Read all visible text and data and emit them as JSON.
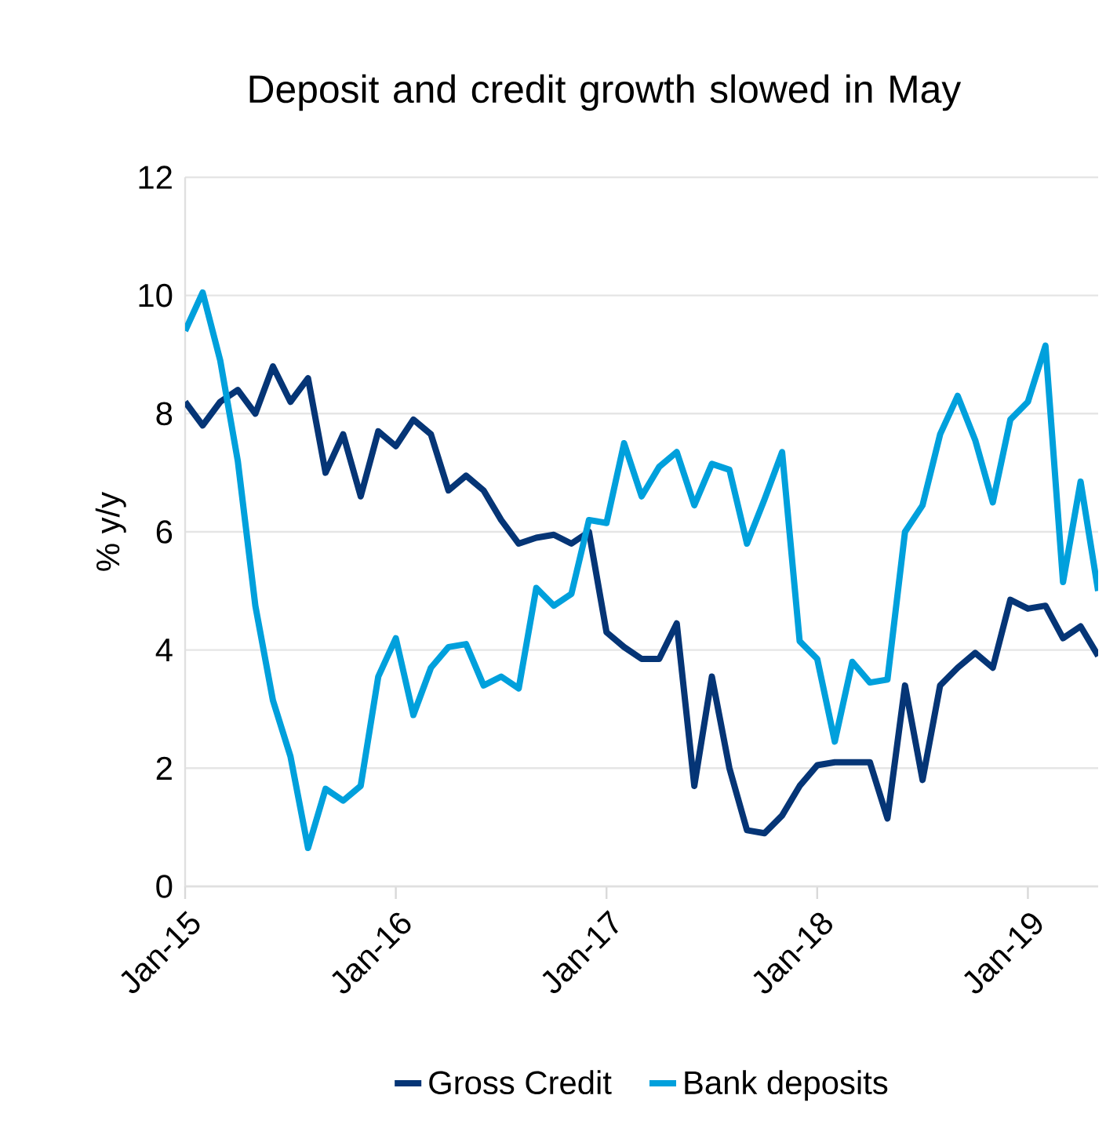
{
  "chart_data": {
    "type": "line",
    "title": "Deposit and credit growth slowed in May",
    "ylabel": "% y/y",
    "x": [
      "2015-01",
      "2015-02",
      "2015-03",
      "2015-04",
      "2015-05",
      "2015-06",
      "2015-07",
      "2015-08",
      "2015-09",
      "2015-10",
      "2015-11",
      "2015-12",
      "2016-01",
      "2016-02",
      "2016-03",
      "2016-04",
      "2016-05",
      "2016-06",
      "2016-07",
      "2016-08",
      "2016-09",
      "2016-10",
      "2016-11",
      "2016-12",
      "2017-01",
      "2017-02",
      "2017-03",
      "2017-04",
      "2017-05",
      "2017-06",
      "2017-07",
      "2017-08",
      "2017-09",
      "2017-10",
      "2017-11",
      "2017-12",
      "2018-01",
      "2018-02",
      "2018-03",
      "2018-04",
      "2018-05",
      "2018-06",
      "2018-07",
      "2018-08",
      "2018-09",
      "2018-10",
      "2018-11",
      "2018-12",
      "2019-01",
      "2019-02",
      "2019-03",
      "2019-04",
      "2019-05"
    ],
    "series": [
      {
        "name": "Gross Credit",
        "color": "#053576",
        "values": [
          8.2,
          7.8,
          8.2,
          8.4,
          8.0,
          8.8,
          8.2,
          8.6,
          7.0,
          7.65,
          6.6,
          7.7,
          7.45,
          7.9,
          7.65,
          6.7,
          6.95,
          6.7,
          6.2,
          5.8,
          5.9,
          5.95,
          5.8,
          6.0,
          4.3,
          4.05,
          3.85,
          3.85,
          4.45,
          1.7,
          3.55,
          2.0,
          0.95,
          0.9,
          1.2,
          1.7,
          2.05,
          2.1,
          2.1,
          2.1,
          1.15,
          3.4,
          1.8,
          3.4,
          3.7,
          3.95,
          3.7,
          4.85,
          4.7,
          4.75,
          4.2,
          4.4,
          3.9
        ]
      },
      {
        "name": "Bank deposits",
        "color": "#00a0dc",
        "values": [
          9.4,
          10.05,
          8.9,
          7.2,
          4.75,
          3.15,
          2.2,
          0.65,
          1.65,
          1.45,
          1.7,
          3.55,
          4.2,
          2.9,
          3.7,
          4.05,
          4.1,
          3.4,
          3.55,
          3.35,
          5.05,
          4.75,
          4.95,
          6.2,
          6.15,
          7.5,
          6.6,
          7.1,
          7.35,
          6.45,
          7.15,
          7.05,
          5.8,
          6.55,
          7.35,
          4.15,
          3.85,
          2.45,
          3.8,
          3.45,
          3.5,
          6.0,
          6.45,
          7.65,
          8.3,
          7.55,
          6.5,
          7.9,
          8.2,
          9.15,
          5.15,
          6.85,
          5.0
        ]
      }
    ],
    "xlim": [
      "2015-01",
      "2019-05"
    ],
    "xticks": [
      {
        "value": "2015-01",
        "label": "Jan-15"
      },
      {
        "value": "2016-01",
        "label": "Jan-16"
      },
      {
        "value": "2017-01",
        "label": "Jan-17"
      },
      {
        "value": "2018-01",
        "label": "Jan-18"
      },
      {
        "value": "2019-01",
        "label": "Jan-19"
      }
    ],
    "ylim": [
      0,
      12
    ],
    "yticks": [
      0,
      2,
      4,
      6,
      8,
      10,
      12
    ],
    "grid": "y",
    "legend": "bottom",
    "marker": "none",
    "line_style": "solid"
  }
}
